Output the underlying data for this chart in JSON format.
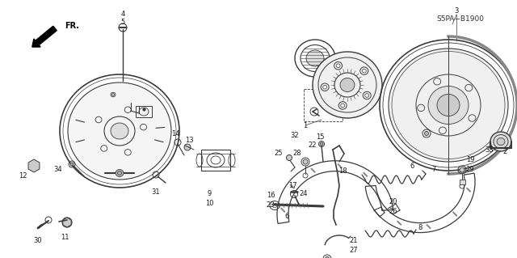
{
  "bg_color": "#ffffff",
  "diagram_code": "S5PA−B1900",
  "fig_width": 6.4,
  "fig_height": 3.19,
  "dpi": 100,
  "line_color": "#3a3a3a",
  "text_color": "#1a1a1a"
}
